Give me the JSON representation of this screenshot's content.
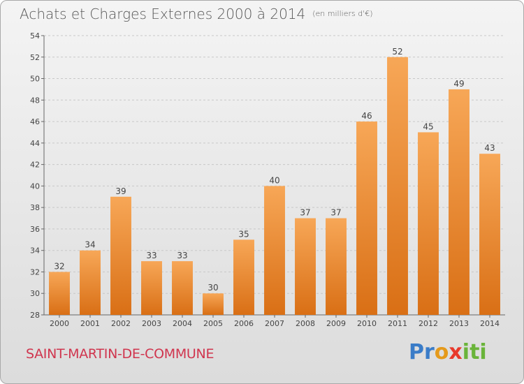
{
  "header": {
    "title": "Achats et Charges Externes 2000 à 2014",
    "unit": "(en milliers d'€)"
  },
  "footer": {
    "commune": "SAINT-MARTIN-DE-COMMUNE",
    "brand": {
      "p1": "Pr",
      "p2": "o",
      "p3": "x",
      "p4": "iti"
    }
  },
  "colors": {
    "bar_top": "#f7a757",
    "bar_bottom": "#d96f15",
    "grid": "#c8c8c8",
    "commune_text": "#d0354e"
  },
  "chart_data": {
    "type": "bar",
    "categories": [
      "2000",
      "2001",
      "2002",
      "2003",
      "2004",
      "2005",
      "2006",
      "2007",
      "2008",
      "2009",
      "2010",
      "2011",
      "2012",
      "2013",
      "2014"
    ],
    "values": [
      32,
      34,
      39,
      33,
      33,
      30,
      35,
      40,
      37,
      37,
      46,
      52,
      45,
      49,
      43
    ],
    "ylim": [
      28,
      54
    ],
    "yticks": [
      28,
      30,
      32,
      34,
      36,
      38,
      40,
      42,
      44,
      46,
      48,
      50,
      52,
      54
    ],
    "grid": true,
    "data_labels": true
  }
}
